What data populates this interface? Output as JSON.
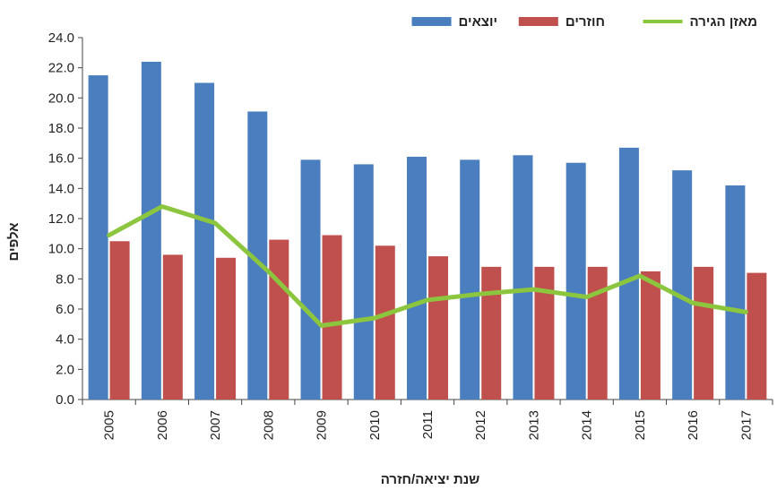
{
  "chart_data": {
    "type": "bar",
    "categories": [
      "2005",
      "2006",
      "2007",
      "2008",
      "2009",
      "2010",
      "2011",
      "2012",
      "2013",
      "2014",
      "2015",
      "2016",
      "2017"
    ],
    "series": [
      {
        "name": "יוצאים",
        "type": "bar",
        "color": "#4a7ebf",
        "values": [
          21.5,
          22.4,
          21.0,
          19.1,
          15.9,
          15.6,
          16.1,
          15.9,
          16.2,
          15.7,
          16.7,
          15.2,
          14.2
        ]
      },
      {
        "name": "חוזרים",
        "type": "bar",
        "color": "#c0504d",
        "values": [
          10.5,
          9.6,
          9.4,
          10.6,
          10.9,
          10.2,
          9.5,
          8.8,
          8.8,
          8.8,
          8.5,
          8.8,
          8.4
        ]
      },
      {
        "name": "מאזן הגירה",
        "type": "line",
        "color": "#8cc63f",
        "values": [
          10.9,
          12.8,
          11.7,
          8.5,
          4.9,
          5.4,
          6.6,
          7.0,
          7.3,
          6.8,
          8.2,
          6.4,
          5.8
        ]
      }
    ],
    "xlabel": "שנת יציאה/חזרה",
    "ylabel": "אלפים",
    "ylim": [
      0,
      24
    ],
    "yticks": [
      "0.0",
      "2.0",
      "4.0",
      "6.0",
      "8.0",
      "10.0",
      "12.0",
      "14.0",
      "16.0",
      "18.0",
      "20.0",
      "22.0",
      "24.0"
    ],
    "legend_position": "top-right",
    "grid": false
  }
}
